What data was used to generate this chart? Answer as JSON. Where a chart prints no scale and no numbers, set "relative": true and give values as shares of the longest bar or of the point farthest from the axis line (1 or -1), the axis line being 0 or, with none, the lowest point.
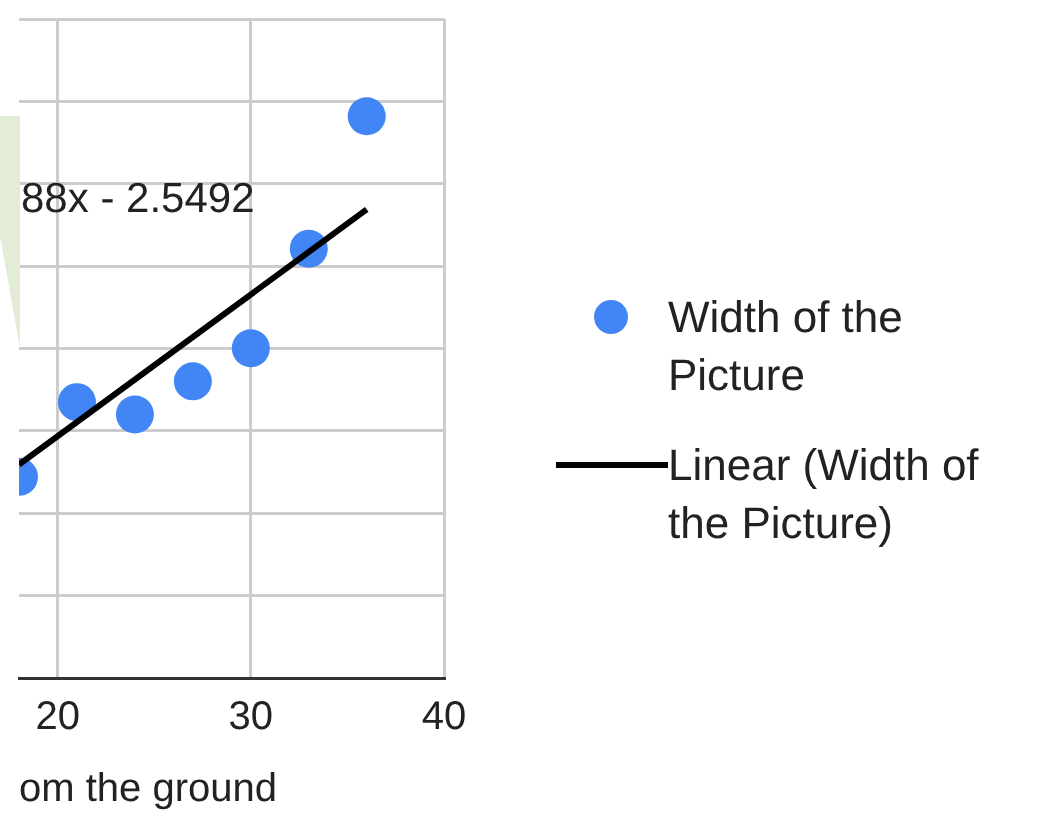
{
  "chart_data": {
    "type": "scatter",
    "xlabel": "om the ground",
    "annotations": [
      "88x - 2.5492"
    ],
    "relative": true,
    "xlim": [
      18,
      40
    ],
    "xticks": [
      20,
      30,
      40
    ],
    "grid": true,
    "legend": "right",
    "marker": "circle",
    "tick_labels": "x",
    "series": [
      {
        "name": "Width of the Picture",
        "color": "#4285f4",
        "x": [
          18,
          21,
          24,
          27,
          30,
          33,
          36
        ],
        "values": [
          0.358,
          0.491,
          0.469,
          0.528,
          0.587,
          0.764,
          1
        ]
      },
      {
        "name": "Linear (Width of the Picture)",
        "type": "line",
        "color": "#000000",
        "x": [
          18,
          36
        ],
        "values": [
          0.38,
          0.834
        ],
        "marker": "none",
        "line_style": "solid"
      }
    ]
  }
}
